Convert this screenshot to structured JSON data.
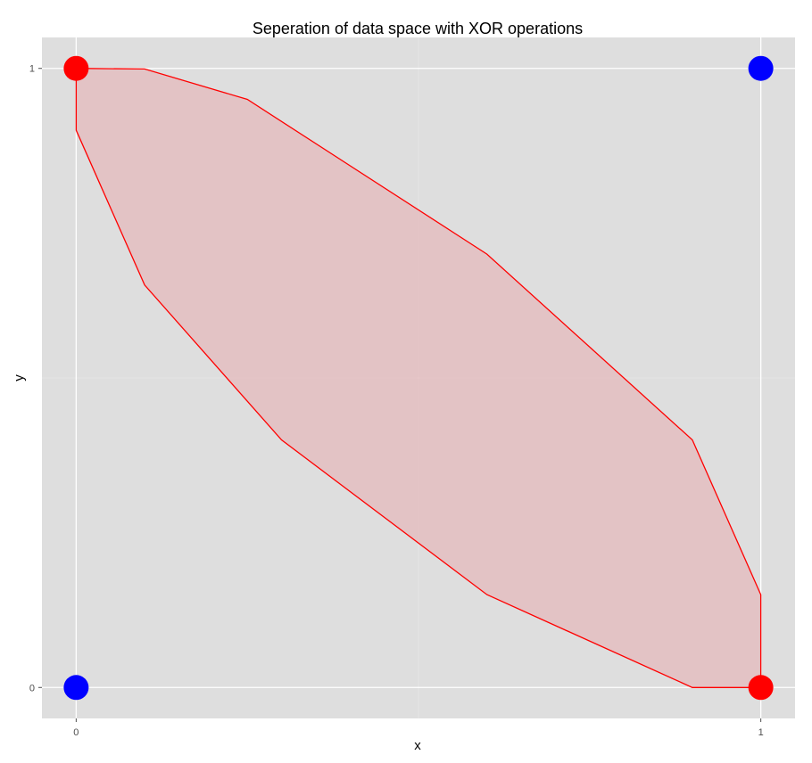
{
  "chart_data": {
    "type": "scatter",
    "title": "Seperation of data space with XOR operations",
    "xlabel": "x",
    "ylabel": "y",
    "xlim": [
      -0.05,
      1.05
    ],
    "ylim": [
      -0.05,
      1.05
    ],
    "x_ticks": [
      0,
      1
    ],
    "y_ticks": [
      0,
      1
    ],
    "x_tick_labels": [
      "0",
      "1"
    ],
    "y_tick_labels": [
      "0",
      "1"
    ],
    "grid": true,
    "points": [
      {
        "x": 0,
        "y": 1,
        "color": "#ff0000"
      },
      {
        "x": 1,
        "y": 1,
        "color": "#0000ff"
      },
      {
        "x": 0,
        "y": 0,
        "color": "#0000ff"
      },
      {
        "x": 1,
        "y": 0,
        "color": "#ff0000"
      }
    ],
    "region": {
      "fill": "#e8a8ac",
      "stroke": "#ff0000",
      "vertices": [
        [
          0,
          1
        ],
        [
          0.1,
          0.999
        ],
        [
          0.25,
          0.95
        ],
        [
          0.6,
          0.7
        ],
        [
          0.9,
          0.4
        ],
        [
          1,
          0.15
        ],
        [
          1,
          0
        ],
        [
          0.9,
          0
        ],
        [
          0.6,
          0.15
        ],
        [
          0.3,
          0.4
        ],
        [
          0.1,
          0.65
        ],
        [
          0,
          0.9
        ]
      ]
    },
    "colors": {
      "panel_background": "#dedede",
      "grid_major": "#ffffff",
      "red_points": "#ff0000",
      "blue_points": "#0000ff"
    }
  }
}
